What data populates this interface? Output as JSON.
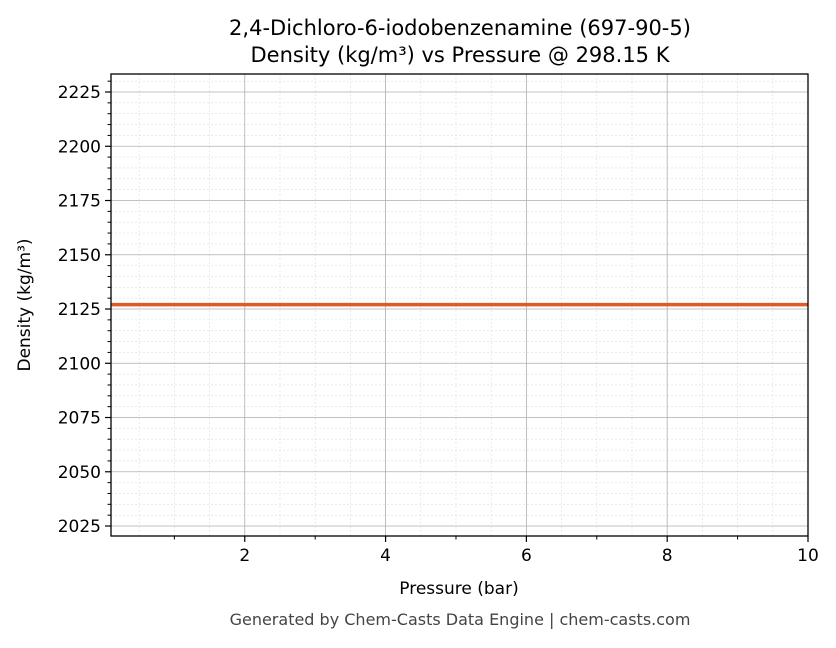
{
  "chart_data": {
    "type": "line",
    "title_line1": "2,4-Dichloro-6-iodobenzenamine (697-90-5)",
    "title_line2": "Density (kg/m³) vs Pressure @ 298.15 K",
    "xlabel": "Pressure (bar)",
    "ylabel": "Density (kg/m³)",
    "xlim": [
      0.1,
      10
    ],
    "ylim": [
      2020.4,
      2233.3
    ],
    "xticks": [
      2,
      4,
      6,
      8,
      10
    ],
    "yticks": [
      2025,
      2050,
      2075,
      2100,
      2125,
      2150,
      2175,
      2200,
      2225
    ],
    "grid": true,
    "series": [
      {
        "x": [
          0.1,
          10
        ],
        "y": [
          2127,
          2127
        ],
        "color": "#e05a28"
      }
    ]
  },
  "footer": "Generated by Chem-Casts Data Engine | chem-casts.com"
}
